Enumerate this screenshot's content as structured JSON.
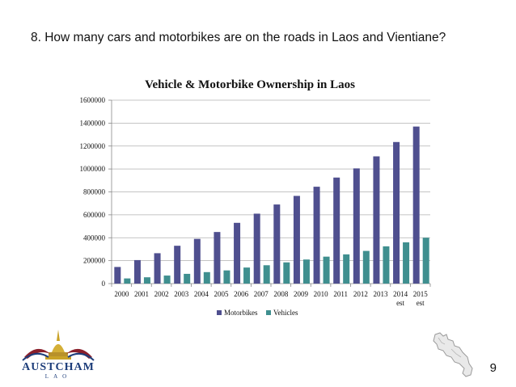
{
  "slide": {
    "heading": "8. How many cars and motorbikes are on the roads in Laos and Vientiane?",
    "page_number": "9"
  },
  "logo": {
    "name_main": "AUSTCHAM",
    "name_sub": "LAO"
  },
  "colors": {
    "motorbikes": "#4F4F8F",
    "vehicles": "#3F8F8F",
    "gridline": "#b0b0b0",
    "axis": "#888888"
  },
  "chart_data": {
    "type": "bar",
    "title": "Vehicle & Motorbike Ownership in Laos",
    "xlabel": "",
    "ylabel": "",
    "categories": [
      "2000",
      "2001",
      "2002",
      "2003",
      "2004",
      "2005",
      "2006",
      "2007",
      "2008",
      "2009",
      "2010",
      "2011",
      "2012",
      "2013",
      "2014 est",
      "2015 est"
    ],
    "category_labels": [
      [
        "2000"
      ],
      [
        "2001"
      ],
      [
        "2002"
      ],
      [
        "2003"
      ],
      [
        "2004"
      ],
      [
        "2005"
      ],
      [
        "2006"
      ],
      [
        "2007"
      ],
      [
        "2008"
      ],
      [
        "2009"
      ],
      [
        "2010"
      ],
      [
        "2011"
      ],
      [
        "2012"
      ],
      [
        "2013"
      ],
      [
        "2014",
        "est"
      ],
      [
        "2015",
        "est"
      ]
    ],
    "series": [
      {
        "name": "Motorbikes",
        "values": [
          145000,
          205000,
          265000,
          330000,
          390000,
          450000,
          530000,
          610000,
          690000,
          765000,
          845000,
          925000,
          1005000,
          1110000,
          1235000,
          1370000
        ]
      },
      {
        "name": "Vehicles",
        "values": [
          45000,
          55000,
          70000,
          85000,
          100000,
          115000,
          140000,
          160000,
          185000,
          210000,
          235000,
          255000,
          285000,
          325000,
          360000,
          400000
        ]
      }
    ],
    "ylim": [
      0,
      1600000
    ],
    "yticks": [
      0,
      200000,
      400000,
      600000,
      800000,
      1000000,
      1200000,
      1400000,
      1600000
    ],
    "ytick_labels": [
      "0",
      "200000",
      "400000",
      "600000",
      "800000",
      "1000000",
      "1200000",
      "1400000",
      "1600000"
    ],
    "grid": true,
    "legend": [
      "Motorbikes",
      "Vehicles"
    ],
    "legend_position": "bottom"
  }
}
